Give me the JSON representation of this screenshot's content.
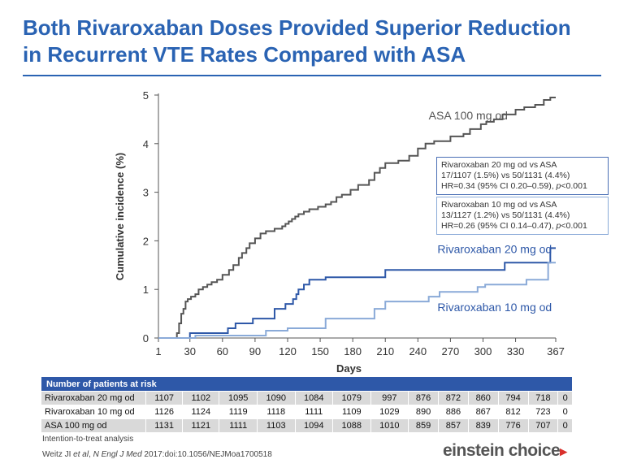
{
  "title_line1": "Both Rivaroxaban Doses Provided Superior Reduction",
  "title_line2": "in Recurrent VTE Rates Compared with ASA",
  "chart_data": {
    "type": "line",
    "xlabel": "Days",
    "ylabel": "Cumulative incidence (%)",
    "xlim": [
      1,
      367
    ],
    "ylim": [
      0,
      5
    ],
    "xticks": [
      1,
      30,
      60,
      90,
      120,
      150,
      180,
      210,
      240,
      270,
      300,
      330,
      367
    ],
    "yticks": [
      0,
      1,
      2,
      3,
      4,
      5
    ],
    "series": [
      {
        "name": "ASA 100 mg od",
        "color": "#555555",
        "x": [
          1,
          18,
          20,
          22,
          24,
          26,
          28,
          31,
          35,
          38,
          42,
          46,
          50,
          55,
          60,
          66,
          70,
          75,
          78,
          82,
          85,
          90,
          95,
          100,
          108,
          115,
          118,
          121,
          124,
          127,
          130,
          135,
          140,
          148,
          155,
          160,
          165,
          170,
          178,
          185,
          195,
          200,
          205,
          210,
          222,
          232,
          240,
          247,
          255,
          270,
          282,
          288,
          298,
          303,
          310,
          318,
          330,
          338,
          348,
          356,
          362,
          367
        ],
        "y": [
          0,
          0.1,
          0.3,
          0.5,
          0.6,
          0.75,
          0.8,
          0.85,
          0.9,
          1.0,
          1.05,
          1.1,
          1.15,
          1.2,
          1.3,
          1.4,
          1.5,
          1.65,
          1.75,
          1.85,
          1.95,
          2.05,
          2.15,
          2.2,
          2.25,
          2.3,
          2.35,
          2.4,
          2.45,
          2.5,
          2.55,
          2.6,
          2.65,
          2.7,
          2.75,
          2.8,
          2.9,
          2.95,
          3.05,
          3.15,
          3.25,
          3.4,
          3.5,
          3.6,
          3.65,
          3.75,
          3.9,
          4.0,
          4.05,
          4.15,
          4.2,
          4.3,
          4.4,
          4.45,
          4.5,
          4.6,
          4.7,
          4.75,
          4.8,
          4.9,
          4.95,
          4.95
        ]
      },
      {
        "name": "Rivaroxaban 20 mg od",
        "color": "#2e58a8",
        "x": [
          1,
          30,
          65,
          72,
          88,
          108,
          118,
          125,
          128,
          130,
          135,
          140,
          155,
          210,
          320,
          362,
          367
        ],
        "y": [
          0,
          0.1,
          0.2,
          0.3,
          0.4,
          0.6,
          0.7,
          0.8,
          0.9,
          1.0,
          1.1,
          1.2,
          1.25,
          1.4,
          1.55,
          1.85,
          1.85
        ]
      },
      {
        "name": "Rivaroxaban 10 mg od",
        "color": "#8aaad8",
        "x": [
          1,
          35,
          100,
          120,
          155,
          200,
          210,
          250,
          260,
          295,
          302,
          340,
          360,
          367
        ],
        "y": [
          0,
          0.05,
          0.15,
          0.2,
          0.4,
          0.6,
          0.75,
          0.85,
          0.95,
          1.05,
          1.1,
          1.2,
          1.55,
          1.55
        ]
      }
    ],
    "annotations": [
      {
        "text": "ASA 100 mg od",
        "color": "#555555",
        "at_x": 250,
        "at_y": 4.5
      },
      {
        "text": "Rivaroxaban 20 mg od",
        "color": "#2e58a8",
        "at_x": 258,
        "at_y": 1.75
      },
      {
        "text": "Rivaroxaban 10 mg od",
        "color": "#2e58a8",
        "at_x": 258,
        "at_y": 0.55
      }
    ]
  },
  "stat_boxes": [
    {
      "line1": "Rivaroxaban 20 mg od vs ASA",
      "line2": "17/1107 (1.5%) vs 50/1131 (4.4%)",
      "line3_pre": "HR=0.34 (95% CI 0.20–0.59), ",
      "line3_p": "p",
      "line3_post": "<0.001"
    },
    {
      "line1": "Rivaroxaban 10 mg od vs ASA",
      "line2": "13/1127 (1.2%) vs 50/1131 (4.4%)",
      "line3_pre": "HR=0.26 (95% CI 0.14–0.47), ",
      "line3_p": "p",
      "line3_post": "<0.001"
    }
  ],
  "risk_table": {
    "header": "Number of patients at risk",
    "rows": [
      {
        "label": "Rivaroxaban 20 mg od",
        "values": [
          "1107",
          "1102",
          "1095",
          "1090",
          "1084",
          "1079",
          "997",
          "876",
          "872",
          "860",
          "794",
          "718",
          "0"
        ]
      },
      {
        "label": "Rivaroxaban 10 mg od",
        "values": [
          "1126",
          "1124",
          "1119",
          "1118",
          "1111",
          "1109",
          "1029",
          "890",
          "886",
          "867",
          "812",
          "723",
          "0"
        ]
      },
      {
        "label": "ASA 100 mg od",
        "values": [
          "1131",
          "1121",
          "1111",
          "1103",
          "1094",
          "1088",
          "1010",
          "859",
          "857",
          "839",
          "776",
          "707",
          "0"
        ]
      }
    ]
  },
  "footnote": "Intention-to-treat analysis",
  "citation_author": "Weitz JI ",
  "citation_etal": "et al",
  "citation_mid": ", ",
  "citation_journal": "N Engl J Med",
  "citation_rest": " 2017:doi:10.1056/NEJMoa1700518",
  "logo_text": "einstein choice",
  "logo_mark": "▸"
}
